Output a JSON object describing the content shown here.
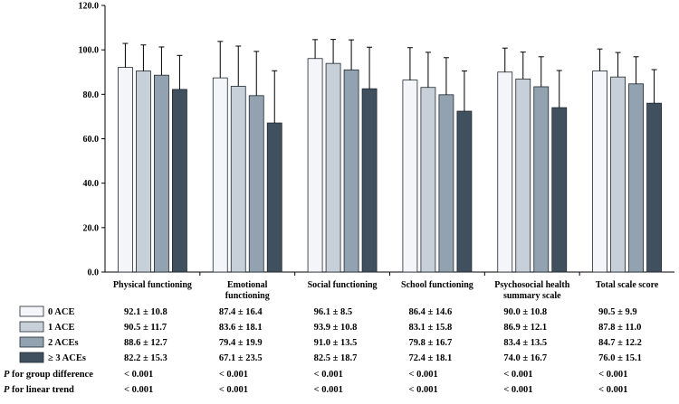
{
  "chart_data": {
    "type": "bar",
    "title": "",
    "xlabel": "",
    "ylabel": "",
    "ylim": [
      0,
      120
    ],
    "yticks": [
      "0.0",
      "20.0",
      "40.0",
      "60.0",
      "80.0",
      "100.0",
      "120.0"
    ],
    "categories": [
      [
        "Physical functioning"
      ],
      [
        "Emotional",
        "functioning"
      ],
      [
        "Social functioning"
      ],
      [
        "School functioning"
      ],
      [
        "Psychosocial health",
        "summary scale"
      ],
      [
        "Total scale score"
      ]
    ],
    "series": [
      {
        "name": "0 ACE",
        "color": "#f3f5f8",
        "values": [
          92.1,
          87.4,
          96.1,
          86.4,
          90.0,
          90.5
        ],
        "sd": [
          10.8,
          16.4,
          8.5,
          14.6,
          10.8,
          9.9
        ],
        "labels": [
          "92.1 ± 10.8",
          "87.4 ± 16.4",
          "96.1 ± 8.5",
          "86.4 ± 14.6",
          "90.0 ± 10.8",
          "90.5 ± 9.9"
        ]
      },
      {
        "name": "1 ACE",
        "color": "#c7d0d8",
        "values": [
          90.5,
          83.6,
          93.9,
          83.1,
          86.9,
          87.8
        ],
        "sd": [
          11.7,
          18.1,
          10.8,
          15.8,
          12.1,
          11.0
        ],
        "labels": [
          "90.5 ± 11.7",
          "83.6 ± 18.1",
          "93.9 ± 10.8",
          "83.1 ± 15.8",
          "86.9 ± 12.1",
          "87.8 ± 11.0"
        ]
      },
      {
        "name": "2 ACEs",
        "color": "#92a2b0",
        "values": [
          88.6,
          79.4,
          91.0,
          79.8,
          83.4,
          84.7
        ],
        "sd": [
          12.7,
          19.9,
          13.5,
          16.7,
          13.5,
          12.2
        ],
        "labels": [
          "88.6 ± 12.7",
          "79.4 ± 19.9",
          "91.0 ± 13.5",
          "79.8 ± 16.7",
          "83.4 ± 13.5",
          "84.7 ± 12.2"
        ]
      },
      {
        "name": "≥ 3 ACEs",
        "color": "#41505e",
        "values": [
          82.2,
          67.1,
          82.5,
          72.4,
          74.0,
          76.0
        ],
        "sd": [
          15.3,
          23.5,
          18.7,
          18.1,
          16.7,
          15.1
        ],
        "labels": [
          "82.2 ± 15.3",
          "67.1 ± 23.5",
          "82.5 ± 18.7",
          "72.4 ± 18.1",
          "74.0 ± 16.7",
          "76.0 ± 15.1"
        ]
      }
    ],
    "p_rows": [
      {
        "label": "P for group difference",
        "values": [
          "< 0.001",
          "< 0.001",
          "< 0.001",
          "< 0.001",
          "< 0.001",
          "< 0.001"
        ]
      },
      {
        "label": "P for linear trend",
        "values": [
          "< 0.001",
          "< 0.001",
          "< 0.001",
          "< 0.001",
          "< 0.001",
          "< 0.001"
        ]
      }
    ]
  }
}
